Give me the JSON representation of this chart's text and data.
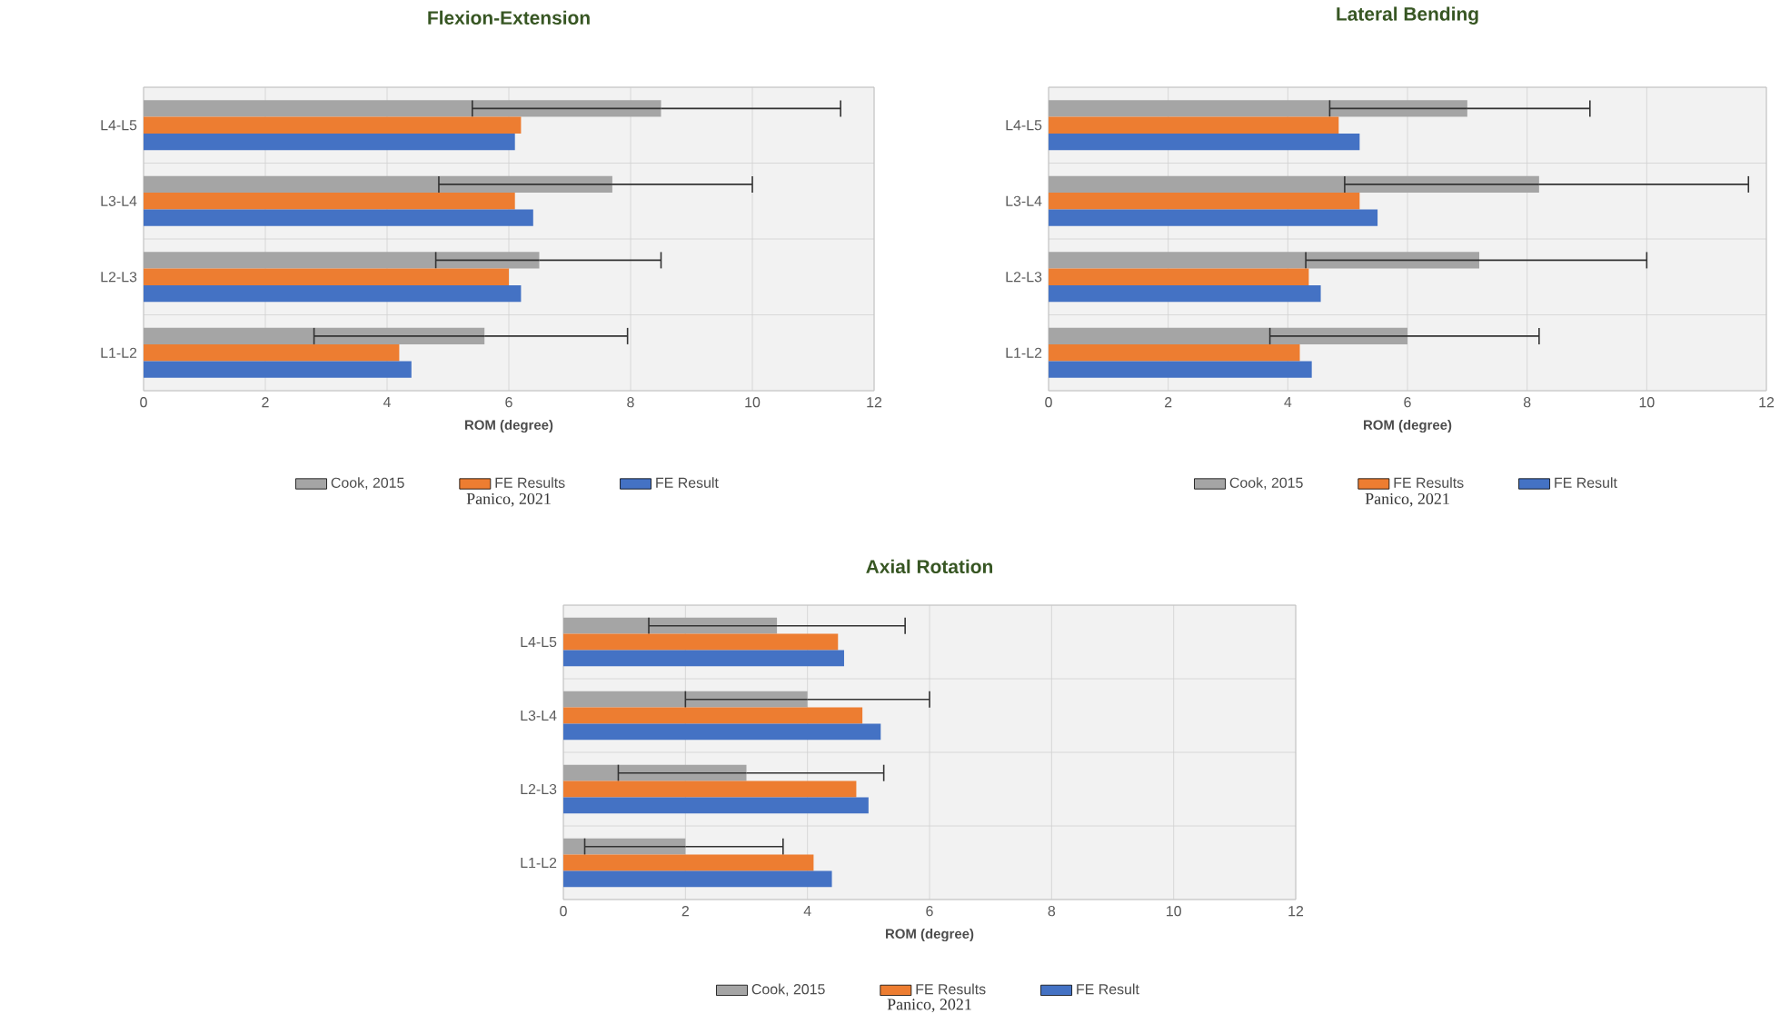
{
  "chart_data": [
    {
      "type": "bar",
      "orientation": "horizontal",
      "title": "Flexion-Extension",
      "xlabel": "ROM (degree)",
      "categories": [
        "L4-L5",
        "L3-L4",
        "L2-L3",
        "L1-L2"
      ],
      "series": [
        {
          "name": "Cook, 2015",
          "color": "#a5a5a5",
          "values": [
            8.5,
            7.7,
            6.5,
            5.6
          ],
          "errors": [
            [
              5.4,
              11.45
            ],
            [
              4.85,
              10.0
            ],
            [
              4.8,
              8.5
            ],
            [
              2.8,
              7.95
            ]
          ]
        },
        {
          "name": "FE Results",
          "color": "#ed7d31",
          "values": [
            6.2,
            6.1,
            6.0,
            4.2
          ]
        },
        {
          "name": "FE Result",
          "color": "#4472c4",
          "values": [
            6.1,
            6.4,
            6.2,
            4.4
          ]
        }
      ],
      "xlim": [
        0,
        12
      ],
      "xticks": [
        0,
        2,
        4,
        6,
        8,
        10,
        12
      ],
      "grid": true,
      "legend": "bottom",
      "annotations": [
        "Panico, 2021"
      ]
    },
    {
      "type": "bar",
      "orientation": "horizontal",
      "title": "Lateral Bending",
      "xlabel": "ROM (degree)",
      "categories": [
        "L4-L5",
        "L3-L4",
        "L2-L3",
        "L1-L2"
      ],
      "series": [
        {
          "name": "Cook, 2015",
          "color": "#a5a5a5",
          "values": [
            7.0,
            8.2,
            7.2,
            6.0
          ],
          "errors": [
            [
              4.7,
              9.05
            ],
            [
              4.95,
              11.7
            ],
            [
              4.3,
              10.0
            ],
            [
              3.7,
              8.2
            ]
          ]
        },
        {
          "name": "FE Results",
          "color": "#ed7d31",
          "values": [
            4.85,
            5.2,
            4.35,
            4.2
          ]
        },
        {
          "name": "FE Result",
          "color": "#4472c4",
          "values": [
            5.2,
            5.5,
            4.55,
            4.4
          ]
        }
      ],
      "xlim": [
        0,
        12
      ],
      "xticks": [
        0,
        2,
        4,
        6,
        8,
        10,
        12
      ],
      "grid": true,
      "legend": "bottom",
      "annotations": [
        "Panico, 2021"
      ]
    },
    {
      "type": "bar",
      "orientation": "horizontal",
      "title": "Axial Rotation",
      "xlabel": "ROM (degree)",
      "categories": [
        "L4-L5",
        "L3-L4",
        "L2-L3",
        "L1-L2"
      ],
      "series": [
        {
          "name": "Cook, 2015",
          "color": "#a5a5a5",
          "values": [
            3.5,
            4.0,
            3.0,
            2.0
          ],
          "errors": [
            [
              1.4,
              5.6
            ],
            [
              2.0,
              6.0
            ],
            [
              0.9,
              5.25
            ],
            [
              0.35,
              3.6
            ]
          ]
        },
        {
          "name": "FE Results",
          "color": "#ed7d31",
          "values": [
            4.5,
            4.9,
            4.8,
            4.1
          ]
        },
        {
          "name": "FE Result",
          "color": "#4472c4",
          "values": [
            4.6,
            5.2,
            5.0,
            4.4
          ]
        }
      ],
      "xlim": [
        0,
        12
      ],
      "xticks": [
        0,
        2,
        4,
        6,
        8,
        10,
        12
      ],
      "grid": true,
      "legend": "bottom",
      "annotations": [
        "Panico, 2021"
      ]
    }
  ]
}
